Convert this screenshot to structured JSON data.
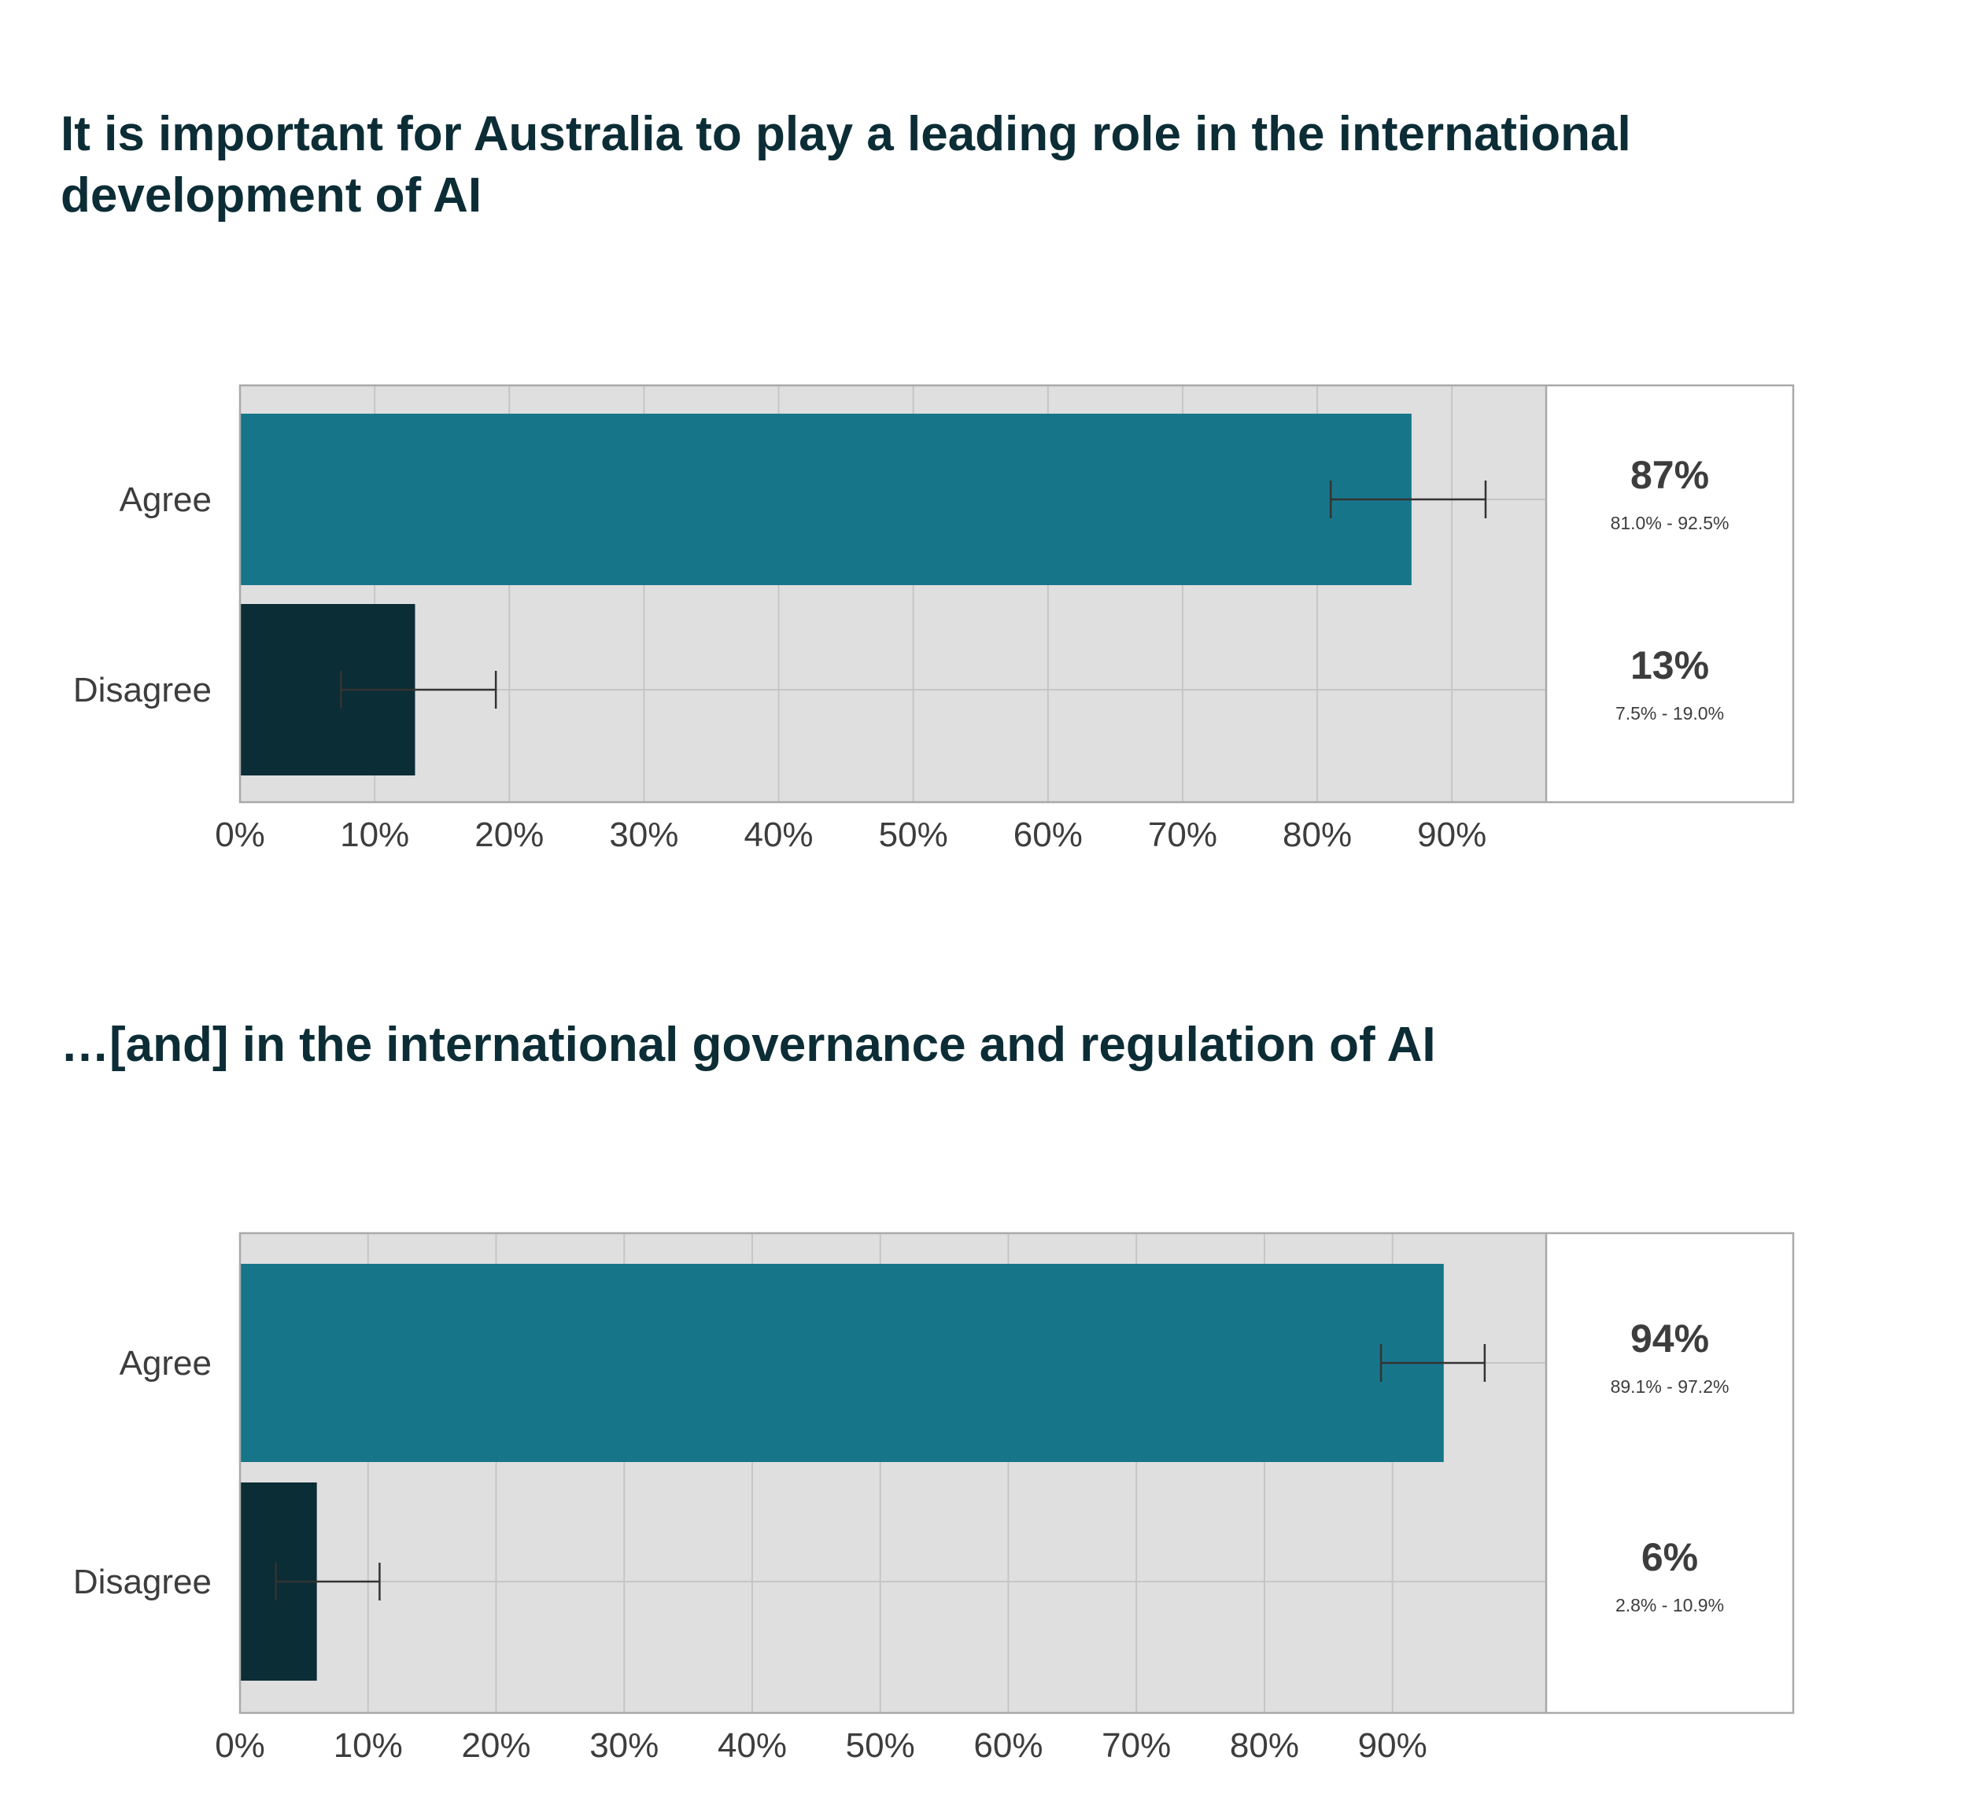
{
  "chart_data": [
    {
      "type": "bar",
      "orientation": "horizontal",
      "title": "It is important for Australia to play a leading role in the international development of AI",
      "categories": [
        "Agree",
        "Disagree"
      ],
      "values": [
        87,
        13
      ],
      "value_labels": [
        "87%",
        "13%"
      ],
      "range_labels": [
        "81.0% - 92.5%",
        "7.5% - 19.0%"
      ],
      "error_low": [
        81.0,
        7.5
      ],
      "error_high": [
        92.5,
        19.0
      ],
      "colors": [
        "#17758a",
        "#0b2d35"
      ],
      "xticks": [
        "0%",
        "10%",
        "20%",
        "30%",
        "40%",
        "50%",
        "60%",
        "70%",
        "80%",
        "90%"
      ],
      "xlim": [
        0,
        97
      ],
      "grid": true
    },
    {
      "type": "bar",
      "orientation": "horizontal",
      "title": "…[and] in the international governance and regulation of AI",
      "categories": [
        "Agree",
        "Disagree"
      ],
      "values": [
        94,
        6
      ],
      "value_labels": [
        "94%",
        "6%"
      ],
      "range_labels": [
        "89.1% - 97.2%",
        "2.8% - 10.9%"
      ],
      "error_low": [
        89.1,
        2.8
      ],
      "error_high": [
        97.2,
        10.9
      ],
      "colors": [
        "#17758a",
        "#0b2d35"
      ],
      "xticks": [
        "0%",
        "10%",
        "20%",
        "30%",
        "40%",
        "50%",
        "60%",
        "70%",
        "80%",
        "90%"
      ],
      "xlim": [
        0,
        102
      ],
      "grid": true
    }
  ]
}
